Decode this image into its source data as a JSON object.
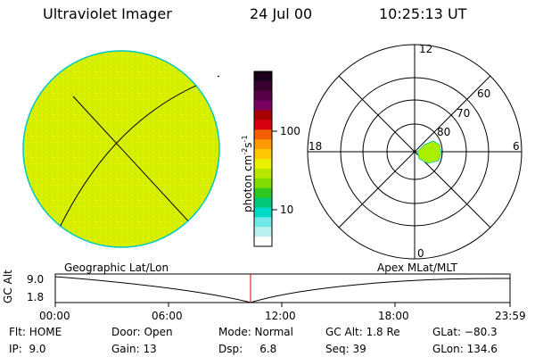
{
  "header": {
    "title": "Ultraviolet Imager",
    "date": "24 Jul 00",
    "time": "10:25:13 UT"
  },
  "colorbar": {
    "unit_label": "photon cm",
    "exp1": "-2",
    "mid": "s",
    "exp2": "-1",
    "ticks": [
      "100",
      "10"
    ],
    "colors": [
      "#1a0018",
      "#3a0030",
      "#58004a",
      "#7a0060",
      "#a80000",
      "#d80010",
      "#f06000",
      "#ff9a00",
      "#ffc800",
      "#e8f000",
      "#b8e800",
      "#80dc00",
      "#30c820",
      "#00c878",
      "#00d8c8",
      "#70e8e8",
      "#b8f0f0",
      "#ffffff"
    ]
  },
  "polar": {
    "lat_labels": [
      "80",
      "70",
      "60"
    ],
    "mlt_labels": {
      "top": "12",
      "right": "6",
      "bottom": "0",
      "left": "18"
    }
  },
  "timeline": {
    "left_label": "Geographic Lat/Lon",
    "right_label": "Apex MLat/MLT",
    "axis_title": "GC Alt",
    "y_ticks": [
      "9.0",
      "1.8"
    ],
    "x_ticks": [
      "00:00",
      "06:00",
      "12:00",
      "18:00",
      "23:59"
    ],
    "marker_color": "#e00000"
  },
  "info": {
    "row1": {
      "flt": "Flt: HOME",
      "door": "Door: Open",
      "mode": "Mode: Normal",
      "gcalt": "GC Alt: 1.8 Re",
      "glat": "GLat: −80.3"
    },
    "row2": {
      "ip": "IP:  9.0",
      "gain": "Gain: 13",
      "dsp": "Dsp:     6.8",
      "seq": "Seq: 39",
      "glon": "GLon: 134.6"
    }
  },
  "colors": {
    "disk_fill": "#d8f000",
    "disk_edge": "#00c8c0",
    "oval_fill": "#a8f000"
  }
}
